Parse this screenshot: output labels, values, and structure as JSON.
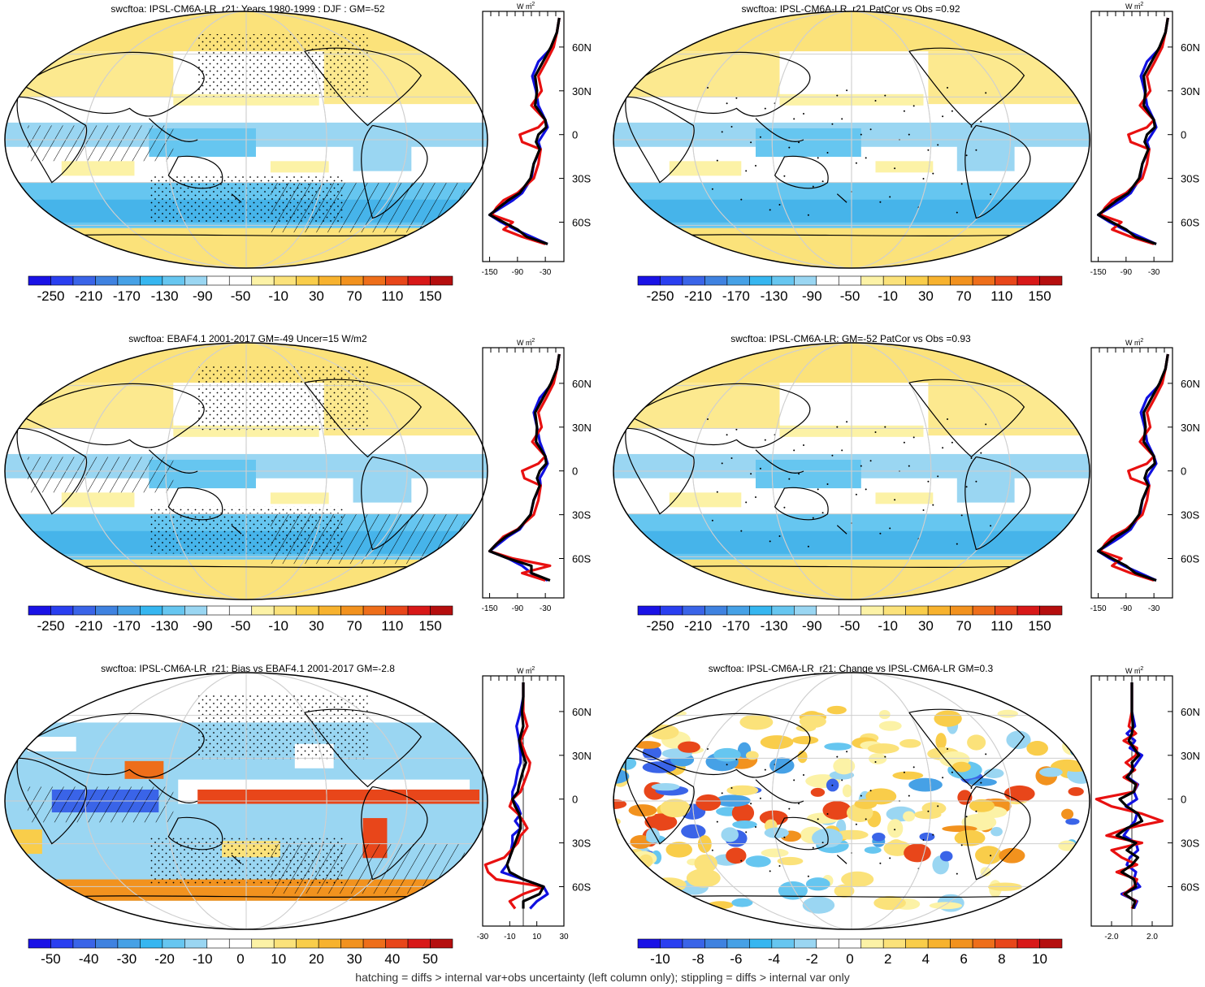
{
  "footer": "hatching = diffs > internal var+obs uncertainty (left column only); stippling = diffs > internal var only",
  "palette": {
    "main": [
      "#1a12e6",
      "#2a3ff0",
      "#3a64e8",
      "#3f82e0",
      "#46a1e6",
      "#36b6f0",
      "#66c6f0",
      "#9ad6f2",
      "#ffffff",
      "#ffffff",
      "#fcf2a6",
      "#fbe27a",
      "#f9cd4a",
      "#f7b22e",
      "#f2921e",
      "#ee6e1a",
      "#e8461a",
      "#d81818",
      "#b50e0e"
    ],
    "diff": [
      "#1a12e6",
      "#2a3ff0",
      "#3a64e8",
      "#3f82e0",
      "#46a1e6",
      "#36b6f0",
      "#66c6f0",
      "#9ad6f2",
      "#ffffff",
      "#ffffff",
      "#fcf2a6",
      "#fbe27a",
      "#f9cd4a",
      "#f7b22e",
      "#f2921e",
      "#ee6e1a",
      "#e8461a",
      "#d81818",
      "#b50e0e"
    ],
    "ocean_blue": "#5cbbe8",
    "land_yellow": "#fbe27a"
  },
  "chart_data": [
    {
      "type": "heatmap",
      "title": "swcftoa: IPSL-CM6A-LR_r21: Years 1980-1999 : DJF : GM=-52",
      "colorbar_labels": [
        "-250",
        "-210",
        "-170",
        "-130",
        "-90",
        "-50",
        "-10",
        "30",
        "70",
        "110",
        "150"
      ],
      "profile": {
        "unit": "W m",
        "unit_exp": "-2",
        "xticks": [
          "-150",
          "-90",
          "-30"
        ],
        "xlim": [
          -165,
          10
        ],
        "ylabels": [
          "60N",
          "30N",
          "0",
          "30S",
          "60S"
        ],
        "ylabel_lats": [
          60,
          30,
          0,
          -30,
          -60
        ],
        "lat": [
          80,
          70,
          60,
          50,
          40,
          30,
          20,
          10,
          5,
          0,
          -5,
          -10,
          -20,
          -30,
          -40,
          -45,
          -50,
          -55,
          -60,
          -65,
          -70,
          -75
        ],
        "series": [
          {
            "color": "#1010e0",
            "values": [
              0,
              -5,
              -15,
              -45,
              -58,
              -50,
              -45,
              -30,
              -25,
              -35,
              -45,
              -40,
              -55,
              -60,
              -80,
              -100,
              -125,
              -150,
              -125,
              -95,
              -60,
              -25
            ]
          },
          {
            "color": "#e81010",
            "values": [
              0,
              -5,
              -12,
              -28,
              -45,
              -38,
              -60,
              -30,
              -45,
              -85,
              -80,
              -40,
              -45,
              -55,
              -90,
              -120,
              -135,
              -145,
              -100,
              -120,
              -80,
              -30
            ]
          },
          {
            "color": "#000000",
            "values": [
              0,
              -5,
              -18,
              -35,
              -52,
              -48,
              -52,
              -30,
              -28,
              -45,
              -50,
              -42,
              -55,
              -62,
              -85,
              -110,
              -130,
              -150,
              -120,
              -90,
              -70,
              -25
            ]
          }
        ]
      }
    },
    {
      "type": "heatmap",
      "title": "swcftoa: IPSL-CM6A-LR_r21 PatCor vs Obs =0.92",
      "colorbar_labels": [
        "-250",
        "-210",
        "-170",
        "-130",
        "-90",
        "-50",
        "-10",
        "30",
        "70",
        "110",
        "150"
      ],
      "profile": {
        "unit": "W m",
        "unit_exp": "-2",
        "xticks": [
          "-150",
          "-90",
          "-30"
        ],
        "xlim": [
          -165,
          10
        ],
        "ylabels": [
          "60N",
          "30N",
          "0",
          "30S",
          "60S"
        ],
        "ylabel_lats": [
          60,
          30,
          0,
          -30,
          -60
        ],
        "lat": [
          80,
          70,
          60,
          50,
          40,
          30,
          20,
          10,
          5,
          0,
          -5,
          -10,
          -20,
          -30,
          -40,
          -45,
          -50,
          -55,
          -60,
          -65,
          -70,
          -75
        ],
        "series": [
          {
            "color": "#1010e0",
            "values": [
              0,
              -5,
              -15,
              -45,
              -58,
              -50,
              -45,
              -30,
              -25,
              -35,
              -45,
              -40,
              -55,
              -60,
              -80,
              -100,
              -125,
              -150,
              -125,
              -95,
              -60,
              -25
            ]
          },
          {
            "color": "#e81010",
            "values": [
              0,
              -5,
              -12,
              -28,
              -45,
              -38,
              -60,
              -30,
              -45,
              -85,
              -80,
              -40,
              -45,
              -55,
              -90,
              -120,
              -135,
              -145,
              -100,
              -120,
              -80,
              -30
            ]
          },
          {
            "color": "#000000",
            "values": [
              0,
              -5,
              -18,
              -35,
              -52,
              -48,
              -52,
              -30,
              -28,
              -45,
              -50,
              -42,
              -55,
              -62,
              -85,
              -110,
              -130,
              -150,
              -120,
              -90,
              -70,
              -25
            ]
          }
        ]
      }
    },
    {
      "type": "heatmap",
      "title": "swcftoa: EBAF4.1 2001-2017 GM=-49 Uncer=15 W/m2",
      "colorbar_labels": [
        "-250",
        "-210",
        "-170",
        "-130",
        "-90",
        "-50",
        "-10",
        "30",
        "70",
        "110",
        "150"
      ],
      "profile": {
        "unit": "W m",
        "unit_exp": "-2",
        "xticks": [
          "-150",
          "-90",
          "-30"
        ],
        "xlim": [
          -165,
          10
        ],
        "ylabels": [
          "60N",
          "30N",
          "0",
          "30S",
          "60S"
        ],
        "ylabel_lats": [
          60,
          30,
          0,
          -30,
          -60
        ],
        "lat": [
          80,
          70,
          60,
          50,
          40,
          30,
          20,
          10,
          5,
          0,
          -5,
          -10,
          -20,
          -30,
          -40,
          -45,
          -50,
          -55,
          -60,
          -65,
          -70,
          -75
        ],
        "series": [
          {
            "color": "#1010e0",
            "values": [
              0,
              -5,
              -15,
              -42,
              -55,
              -48,
              -42,
              -30,
              -25,
              -33,
              -42,
              -40,
              -55,
              -62,
              -85,
              -110,
              -130,
              -150,
              -110,
              -80,
              -60,
              -25
            ]
          },
          {
            "color": "#e81010",
            "values": [
              0,
              -5,
              -12,
              -28,
              -45,
              -38,
              -58,
              -30,
              -45,
              -80,
              -75,
              -40,
              -45,
              -55,
              -90,
              -120,
              -135,
              -150,
              -100,
              -20,
              -80,
              -30
            ]
          },
          {
            "color": "#000000",
            "values": [
              0,
              -5,
              -18,
              -35,
              -52,
              -48,
              -50,
              -30,
              -28,
              -42,
              -48,
              -42,
              -55,
              -62,
              -88,
              -115,
              -135,
              -150,
              -110,
              -60,
              -60,
              -20
            ]
          }
        ]
      }
    },
    {
      "type": "heatmap",
      "title": "swcftoa: IPSL-CM6A-LR: GM=-52 PatCor vs Obs =0.93",
      "colorbar_labels": [
        "-250",
        "-210",
        "-170",
        "-130",
        "-90",
        "-50",
        "-10",
        "30",
        "70",
        "110",
        "150"
      ],
      "profile": {
        "unit": "W m",
        "unit_exp": "-2",
        "xticks": [
          "-150",
          "-90",
          "-30"
        ],
        "xlim": [
          -165,
          10
        ],
        "ylabels": [
          "60N",
          "30N",
          "0",
          "30S",
          "60S"
        ],
        "ylabel_lats": [
          60,
          30,
          0,
          -30,
          -60
        ],
        "lat": [
          80,
          70,
          60,
          50,
          40,
          30,
          20,
          10,
          5,
          0,
          -5,
          -10,
          -20,
          -30,
          -40,
          -45,
          -50,
          -55,
          -60,
          -65,
          -70,
          -75
        ],
        "series": [
          {
            "color": "#1010e0",
            "values": [
              0,
              -5,
              -15,
              -45,
              -58,
              -50,
              -45,
              -30,
              -25,
              -35,
              -45,
              -40,
              -55,
              -60,
              -80,
              -100,
              -125,
              -150,
              -125,
              -95,
              -60,
              -25
            ]
          },
          {
            "color": "#e81010",
            "values": [
              0,
              -5,
              -12,
              -28,
              -45,
              -38,
              -60,
              -30,
              -45,
              -85,
              -80,
              -40,
              -45,
              -55,
              -90,
              -120,
              -135,
              -145,
              -100,
              -120,
              -80,
              -30
            ]
          },
          {
            "color": "#000000",
            "values": [
              0,
              -5,
              -18,
              -35,
              -52,
              -48,
              -52,
              -30,
              -28,
              -45,
              -50,
              -42,
              -55,
              -62,
              -85,
              -110,
              -130,
              -150,
              -120,
              -90,
              -70,
              -25
            ]
          }
        ]
      }
    },
    {
      "type": "heatmap",
      "title": "swcftoa: IPSL-CM6A-LR_r21: Bias vs EBAF4.1 2001-2017 GM=-2.8",
      "colorbar_labels": [
        "-50",
        "-40",
        "-30",
        "-20",
        "-10",
        "0",
        "10",
        "20",
        "30",
        "40",
        "50"
      ],
      "profile": {
        "unit": "W m",
        "unit_exp": "-2",
        "xticks": [
          "-30",
          "-10",
          "10",
          "30"
        ],
        "xlim": [
          -30,
          30
        ],
        "ylabels": [
          "60N",
          "30N",
          "0",
          "30S",
          "60S"
        ],
        "ylabel_lats": [
          60,
          30,
          0,
          -30,
          -60
        ],
        "lat": [
          80,
          70,
          60,
          50,
          40,
          30,
          25,
          20,
          10,
          5,
          0,
          -5,
          -10,
          -15,
          -20,
          -25,
          -30,
          -40,
          -45,
          -50,
          -55,
          -60,
          -65,
          -70,
          -75
        ],
        "series": [
          {
            "color": "#1010e0",
            "values": [
              0,
              0,
              -2,
              -5,
              -3,
              -2,
              -2,
              -4,
              -6,
              -8,
              -8,
              -4,
              -2,
              -6,
              -2,
              -8,
              -8,
              -10,
              -12,
              -16,
              0,
              15,
              18,
              10,
              5
            ]
          },
          {
            "color": "#e81010",
            "values": [
              0,
              0,
              0,
              3,
              -2,
              2,
              5,
              4,
              0,
              -2,
              -8,
              -10,
              -4,
              0,
              3,
              -2,
              -4,
              -14,
              -28,
              -26,
              -20,
              15,
              0,
              -10,
              -6
            ]
          },
          {
            "color": "#000000",
            "values": [
              0,
              0,
              -1,
              0,
              -3,
              0,
              2,
              0,
              -3,
              -4,
              -8,
              -6,
              -3,
              -2,
              -2,
              -4,
              -6,
              -10,
              -12,
              -10,
              0,
              15,
              12,
              0,
              0
            ]
          }
        ]
      }
    },
    {
      "type": "heatmap",
      "title": "swcftoa: IPSL-CM6A-LR_r21: Change vs IPSL-CM6A-LR GM=0.3",
      "colorbar_labels": [
        "-10",
        "-8",
        "-6",
        "-4",
        "-2",
        "0",
        "2",
        "4",
        "6",
        "8",
        "10"
      ],
      "profile": {
        "unit": "W m",
        "unit_exp": "-2",
        "xticks": [
          "-2.0",
          "2.0"
        ],
        "xlim": [
          -4,
          4
        ],
        "ylabels": [
          "60N",
          "30N",
          "0",
          "30S",
          "60S"
        ],
        "ylabel_lats": [
          60,
          30,
          0,
          -30,
          -60
        ],
        "lat": [
          80,
          70,
          60,
          50,
          45,
          40,
          35,
          30,
          25,
          20,
          15,
          10,
          5,
          0,
          -5,
          -10,
          -15,
          -20,
          -25,
          -30,
          -35,
          -40,
          -45,
          -50,
          -55,
          -60,
          -65,
          -70,
          -75
        ],
        "series": [
          {
            "color": "#1010e0",
            "values": [
              0,
              0,
              0,
              0.3,
              -0.5,
              0.3,
              -0.2,
              1.0,
              0.5,
              0.0,
              -0.4,
              0.6,
              0.2,
              0.5,
              -0.6,
              0.5,
              0.3,
              -0.3,
              -0.8,
              0.4,
              0.6,
              -0.2,
              -0.5,
              0.4,
              0.2,
              0.8,
              -1.0,
              0.5,
              0.2
            ]
          },
          {
            "color": "#e81010",
            "values": [
              0,
              0,
              0,
              -0.3,
              0.4,
              -0.8,
              0.5,
              0.4,
              -0.6,
              0.3,
              -0.8,
              0.5,
              0.2,
              -3.5,
              -2.0,
              1.0,
              3.0,
              -0.5,
              -2.5,
              1.0,
              -2.0,
              -1.0,
              0.5,
              -1.5,
              0.5,
              0.2,
              -0.8,
              0.4,
              0.0
            ]
          },
          {
            "color": "#000000",
            "values": [
              0,
              0,
              0,
              0.1,
              0.0,
              -0.3,
              0.2,
              0.7,
              0.0,
              0.1,
              -0.5,
              0.4,
              0.2,
              -1.2,
              -0.5,
              0.6,
              1.0,
              -0.5,
              -1.5,
              0.4,
              -0.5,
              0.6,
              0.0,
              -1.0,
              0.2,
              0.4,
              -0.7,
              0.3,
              0.1
            ]
          }
        ]
      }
    }
  ]
}
